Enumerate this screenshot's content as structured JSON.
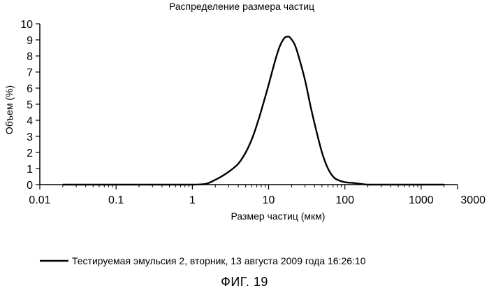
{
  "chart_data": {
    "type": "line",
    "title": "Распределение размера частиц",
    "xlabel": "Размер частиц (мкм)",
    "ylabel": "Объем (%)",
    "xscale": "log",
    "xlim": [
      0.01,
      3000
    ],
    "ylim": [
      0,
      10
    ],
    "x_tick_labels": [
      "0.01",
      "0.1",
      "1",
      "10",
      "100",
      "1000",
      "3000"
    ],
    "y_tick_labels": [
      "0",
      "1",
      "2",
      "3",
      "4",
      "5",
      "6",
      "7",
      "8",
      "9",
      "10"
    ],
    "grid": false,
    "legend_position": "bottom",
    "series": [
      {
        "name": "Тестируемая эмульсия 2, вторник, 13 августа 2009 года 16:26:10",
        "color": "#000000",
        "x": [
          0.02,
          0.1,
          0.5,
          1.0,
          1.5,
          2.0,
          2.5,
          3.0,
          4.0,
          5.0,
          6.0,
          7.0,
          8.0,
          10.0,
          12.0,
          14.0,
          16.0,
          17.5,
          19.0,
          22.0,
          25.0,
          30.0,
          35.0,
          40.0,
          50.0,
          60.0,
          70.0,
          80.0,
          100.0,
          130.0,
          160.0,
          200.0,
          300.0,
          500.0,
          1000.0,
          2000.0
        ],
        "y": [
          0.0,
          0.0,
          0.0,
          0.0,
          0.05,
          0.3,
          0.55,
          0.8,
          1.3,
          2.0,
          2.8,
          3.7,
          4.6,
          6.2,
          7.6,
          8.6,
          9.1,
          9.2,
          9.15,
          8.7,
          7.9,
          6.5,
          5.0,
          3.8,
          2.0,
          1.0,
          0.5,
          0.3,
          0.15,
          0.1,
          0.05,
          0.0,
          0.0,
          0.0,
          0.0,
          0.0
        ]
      }
    ]
  },
  "figure_label": "ФИГ. 19"
}
